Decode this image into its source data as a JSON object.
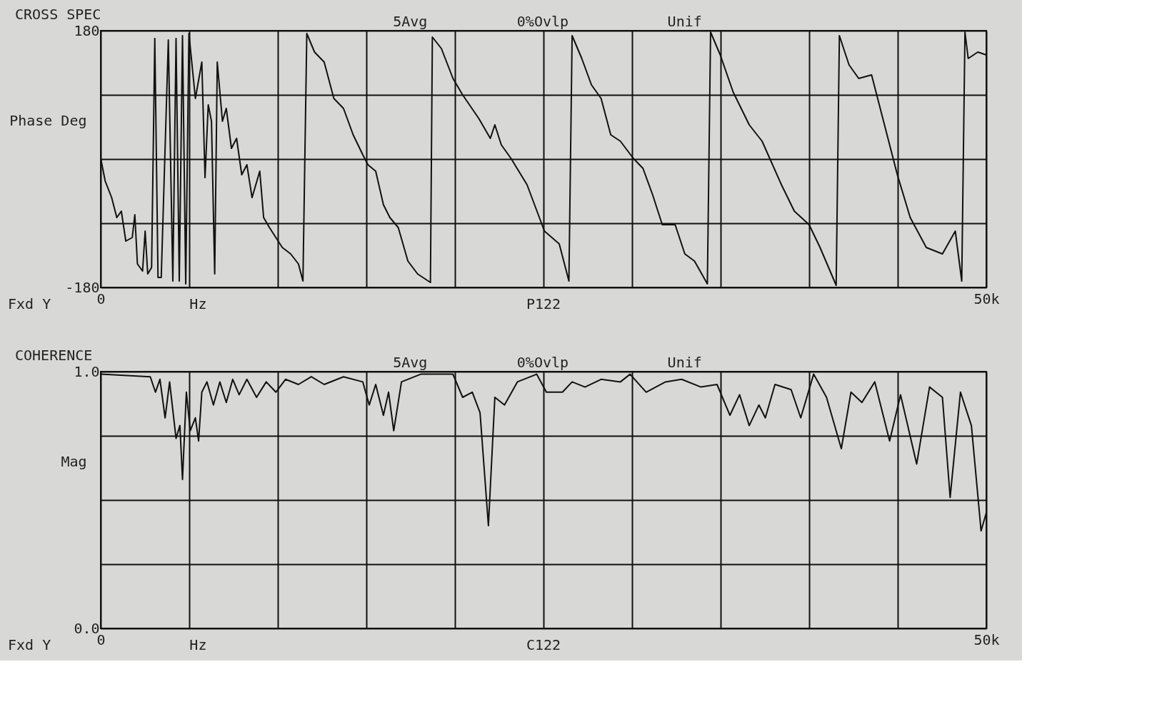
{
  "chart_data": [
    {
      "type": "line",
      "title": "CROSS SPEC",
      "ylabel": "Phase Deg",
      "annotations": [
        "5Avg",
        "0%Ovlp",
        "Unif",
        "Fxd Y",
        "Hz",
        "P122"
      ],
      "x": [
        0,
        255,
        618,
        909,
        1164,
        1418,
        1782,
        1927,
        2073,
        2364,
        2509,
        2655,
        2873,
        3054,
        3236,
        3418,
        3818,
        4072,
        4254,
        4436,
        4618,
        4800,
        4981,
        5345,
        5709,
        5890,
        6072,
        6254,
        6436,
        6581,
        6872,
        7090,
        7381,
        7672,
        7963,
        8254,
        8545,
        8981,
        9199,
        9526,
        9890,
        10254,
        10726,
        11163,
        11418,
        11636,
        12072,
        12617,
        13163,
        13708,
        14253,
        14798,
        15089,
        15526,
        15962,
        16326,
        16799,
        17344,
        17889,
        18616,
        18725,
        19234,
        19889,
        20435,
        21344,
        21998,
        22253,
        22616,
        23162,
        24071,
        25052,
        25889,
        26434,
        26616,
        27161,
        27707,
        28252,
        28797,
        29343,
        30069,
        30615,
        31160,
        31706,
        32433,
        32979,
        33524,
        34251,
        34433,
        34979,
        35706,
        36615,
        37342,
        38433,
        39160,
        39996,
        40614,
        41523,
        41705,
        42250,
        42795,
        43522,
        44250,
        44977,
        45704,
        46613,
        47522,
        48249,
        48613,
        48795,
        48977,
        49522,
        50000
      ],
      "series": [
        {
          "color": "#111111",
          "values": [
            1,
            -31,
            -54,
            -82,
            -73,
            -115,
            -110,
            -78,
            -147,
            -157,
            -101,
            -161,
            -152,
            169,
            -166,
            -166,
            167,
            -171,
            169,
            -171,
            173,
            -175,
            176,
            85,
            136,
            -26,
            76,
            53,
            -161,
            136,
            53,
            71,
            15,
            29,
            -22,
            -8,
            -54,
            -17,
            -82,
            -96,
            -110,
            -124,
            -133,
            -147,
            -171,
            176,
            150,
            136,
            85,
            71,
            34,
            6,
            -8,
            -17,
            -64,
            -82,
            -96,
            -143,
            -161,
            -173,
            171,
            155,
            113,
            90,
            57,
            29,
            48,
            20,
            1,
            -36,
            -101,
            -119,
            -171,
            173,
            141,
            104,
            85,
            34,
            25,
            1,
            -13,
            -50,
            -92,
            -92,
            -133,
            -143,
            -175,
            178,
            146,
            94,
            48,
            25,
            -36,
            -73,
            -92,
            -124,
            -177,
            173,
            132,
            113,
            118,
            48,
            -22,
            -82,
            -124,
            -133,
            -101,
            -171,
            178,
            141,
            150,
            146
          ]
        }
      ],
      "xlim": [
        0,
        50000
      ],
      "xticks": [
        {
          "value": 0,
          "label": "0"
        },
        {
          "value": 5000,
          "label": null
        },
        {
          "value": 10000,
          "label": null
        },
        {
          "value": 15000,
          "label": null
        },
        {
          "value": 20000,
          "label": null
        },
        {
          "value": 25000,
          "label": null
        },
        {
          "value": 30000,
          "label": null
        },
        {
          "value": 35000,
          "label": null
        },
        {
          "value": 40000,
          "label": null
        },
        {
          "value": 45000,
          "label": null
        },
        {
          "value": 50000,
          "label": "50k"
        }
      ],
      "ylim": [
        -180,
        180
      ],
      "yticks": [
        -180,
        {
          "value": -90,
          "label": null
        },
        {
          "value": 0,
          "label": null
        },
        {
          "value": 90,
          "label": null
        },
        180
      ],
      "grid": true
    },
    {
      "type": "line",
      "title": "COHERENCE",
      "ylabel": "Mag",
      "annotations": [
        "5Avg",
        "0%Ovlp",
        "Unif",
        "Fxd Y",
        "Hz",
        "C122"
      ],
      "x": [
        0,
        2800,
        3090,
        3345,
        3636,
        3890,
        4254,
        4472,
        4618,
        4836,
        5054,
        5345,
        5527,
        5709,
        6000,
        6363,
        6727,
        7090,
        7454,
        7817,
        8254,
        8799,
        9345,
        9890,
        10436,
        11163,
        11890,
        12617,
        13708,
        14798,
        15162,
        15526,
        15962,
        16253,
        16544,
        16981,
        18071,
        19889,
        20435,
        20980,
        21417,
        21889,
        22253,
        22798,
        23525,
        24617,
        25162,
        26071,
        26616,
        27343,
        28252,
        29343,
        29888,
        30797,
        31888,
        32797,
        33888,
        34797,
        35524,
        36070,
        36615,
        37160,
        37524,
        38070,
        38979,
        39523,
        40251,
        40978,
        41814,
        42359,
        42977,
        43704,
        44541,
        45159,
        46068,
        46795,
        47522,
        47958,
        48540,
        49158,
        49704,
        50000
      ],
      "series": [
        {
          "color": "#111111",
          "values": [
            0.99,
            0.98,
            0.92,
            0.97,
            0.82,
            0.96,
            0.74,
            0.79,
            0.58,
            0.92,
            0.77,
            0.82,
            0.73,
            0.92,
            0.96,
            0.87,
            0.96,
            0.88,
            0.97,
            0.91,
            0.97,
            0.9,
            0.96,
            0.92,
            0.97,
            0.95,
            0.98,
            0.95,
            0.98,
            0.96,
            0.87,
            0.95,
            0.83,
            0.92,
            0.77,
            0.96,
            0.99,
            0.99,
            0.9,
            0.92,
            0.84,
            0.4,
            0.9,
            0.87,
            0.96,
            0.99,
            0.92,
            0.92,
            0.96,
            0.94,
            0.97,
            0.96,
            0.99,
            0.92,
            0.96,
            0.97,
            0.94,
            0.95,
            0.83,
            0.91,
            0.79,
            0.87,
            0.82,
            0.95,
            0.93,
            0.82,
            0.99,
            0.9,
            0.7,
            0.92,
            0.88,
            0.96,
            0.73,
            0.91,
            0.64,
            0.94,
            0.9,
            0.51,
            0.92,
            0.79,
            0.38,
            0.45
          ]
        }
      ],
      "xlim": [
        0,
        50000
      ],
      "xticks": [
        {
          "value": 0,
          "label": "0"
        },
        {
          "value": 5000,
          "label": null
        },
        {
          "value": 10000,
          "label": null
        },
        {
          "value": 15000,
          "label": null
        },
        {
          "value": 20000,
          "label": null
        },
        {
          "value": 25000,
          "label": null
        },
        {
          "value": 30000,
          "label": null
        },
        {
          "value": 35000,
          "label": null
        },
        {
          "value": 40000,
          "label": null
        },
        {
          "value": 45000,
          "label": null
        },
        {
          "value": 50000,
          "label": "50k"
        }
      ],
      "ylim": [
        0,
        1
      ],
      "yticks": [
        {
          "value": 0,
          "label": "0.0"
        },
        {
          "value": 0.25,
          "label": null
        },
        {
          "value": 0.5,
          "label": null
        },
        {
          "value": 0.75,
          "label": null
        },
        {
          "value": 1,
          "label": "1.0"
        }
      ],
      "grid": true
    }
  ]
}
